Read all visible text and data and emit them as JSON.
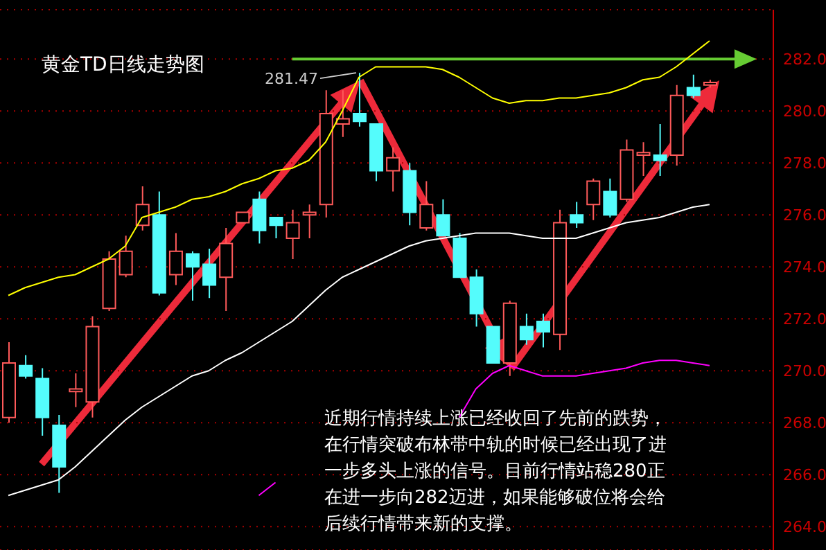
{
  "chart_data": {
    "type": "candlestick",
    "title": "黄金TD日线走势图",
    "categories": [
      null,
      null,
      null,
      null,
      null,
      null,
      null,
      null,
      null,
      null,
      null,
      null,
      null,
      null,
      null,
      null,
      null,
      null,
      null,
      null,
      null,
      null,
      null,
      null,
      null,
      null,
      null,
      null,
      null,
      null,
      null,
      null,
      null,
      null,
      null,
      null,
      null,
      null,
      null,
      null,
      null,
      null,
      null
    ],
    "ohlc": [
      [
        268.2,
        271.1,
        268.0,
        270.3
      ],
      [
        270.2,
        270.6,
        269.7,
        269.8
      ],
      [
        269.7,
        270.1,
        267.5,
        268.2
      ],
      [
        267.9,
        268.3,
        265.3,
        266.3
      ],
      [
        269.2,
        269.9,
        268.6,
        269.3
      ],
      [
        268.8,
        272.1,
        268.2,
        271.7
      ],
      [
        272.4,
        274.6,
        272.3,
        274.3
      ],
      [
        273.7,
        275.2,
        273.6,
        274.6
      ],
      [
        275.6,
        277.1,
        275.4,
        276.4
      ],
      [
        276.0,
        276.9,
        272.9,
        273.0
      ],
      [
        273.7,
        275.3,
        273.3,
        274.6
      ],
      [
        274.5,
        274.6,
        272.7,
        274.0
      ],
      [
        274.1,
        274.7,
        272.8,
        273.3
      ],
      [
        273.6,
        275.5,
        272.3,
        274.9
      ],
      [
        275.7,
        276.1,
        275.7,
        276.1
      ],
      [
        276.6,
        276.9,
        274.9,
        275.4
      ],
      [
        275.9,
        275.9,
        275.1,
        275.6
      ],
      [
        275.1,
        276.2,
        274.3,
        275.7
      ],
      [
        276.0,
        276.4,
        275.1,
        276.1
      ],
      [
        276.4,
        280.8,
        275.9,
        279.9
      ],
      [
        279.5,
        280.8,
        279.0,
        279.7
      ],
      [
        279.9,
        281.47,
        279.4,
        279.6
      ],
      [
        279.5,
        279.5,
        277.3,
        277.7
      ],
      [
        277.7,
        278.6,
        276.9,
        278.2
      ],
      [
        277.7,
        278.0,
        275.6,
        276.1
      ],
      [
        275.5,
        277.3,
        275.4,
        276.4
      ],
      [
        276.0,
        276.6,
        275.2,
        275.2
      ],
      [
        275.1,
        275.3,
        273.6,
        273.6
      ],
      [
        273.6,
        273.9,
        271.7,
        272.2
      ],
      [
        271.7,
        271.7,
        270.3,
        270.3
      ],
      [
        270.3,
        272.7,
        269.8,
        272.6
      ],
      [
        271.7,
        272.2,
        271.0,
        271.2
      ],
      [
        271.9,
        272.2,
        270.9,
        271.5
      ],
      [
        271.4,
        276.2,
        270.8,
        275.7
      ],
      [
        276.0,
        276.5,
        275.5,
        275.7
      ],
      [
        276.4,
        277.4,
        275.8,
        277.3
      ],
      [
        276.9,
        277.4,
        275.9,
        276.0
      ],
      [
        276.6,
        278.9,
        276.5,
        278.5
      ],
      [
        278.3,
        278.8,
        277.5,
        278.4
      ],
      [
        278.3,
        279.5,
        277.5,
        278.1
      ],
      [
        278.3,
        281.0,
        277.9,
        280.6
      ],
      [
        280.9,
        281.4,
        280.5,
        280.6
      ],
      [
        281.0,
        281.2,
        280.9,
        281.1
      ]
    ],
    "colors": [
      "#ff5a5a",
      "#54fcfc",
      "#54fcfc",
      "#54fcfc",
      "#ff5a5a",
      "#ff5a5a",
      "#ff5a5a",
      "#ff5a5a",
      "#ff5a5a",
      "#54fcfc",
      "#ff5a5a",
      "#54fcfc",
      "#54fcfc",
      "#ff5a5a",
      "#ff5a5a",
      "#54fcfc",
      "#54fcfc",
      "#ff5a5a",
      "#ff5a5a",
      "#ff5a5a",
      "#ff5a5a",
      "#54fcfc",
      "#54fcfc",
      "#ff5a5a",
      "#54fcfc",
      "#ff5a5a",
      "#54fcfc",
      "#54fcfc",
      "#54fcfc",
      "#54fcfc",
      "#ff5a5a",
      "#54fcfc",
      "#54fcfc",
      "#ff5a5a",
      "#54fcfc",
      "#ff5a5a",
      "#54fcfc",
      "#ff5a5a",
      "#ff5a5a",
      "#54fcfc",
      "#ff5a5a",
      "#54fcfc",
      "#ff5a5a"
    ],
    "series": [
      {
        "type": "line",
        "color": "#ffff00",
        "values": [
          272.9,
          273.2,
          273.4,
          273.6,
          273.7,
          274.0,
          274.3,
          274.8,
          275.9,
          276.1,
          276.3,
          276.6,
          276.7,
          276.9,
          277.2,
          277.4,
          277.7,
          277.8,
          278.1,
          278.8,
          280.0,
          281.3,
          281.7,
          281.7,
          281.7,
          281.7,
          281.6,
          281.3,
          280.9,
          280.5,
          280.3,
          280.4,
          280.4,
          280.5,
          280.5,
          280.6,
          280.7,
          280.9,
          281.2,
          281.3,
          281.7,
          282.2,
          282.7
        ]
      },
      {
        "type": "line",
        "color": "#ffffff",
        "values": [
          265.2,
          265.4,
          265.6,
          265.8,
          266.3,
          266.9,
          267.5,
          268.1,
          268.6,
          269.0,
          269.4,
          269.8,
          270.0,
          270.4,
          270.7,
          271.1,
          271.5,
          271.9,
          272.5,
          273.1,
          273.6,
          273.9,
          274.2,
          274.5,
          274.8,
          275.0,
          275.1,
          275.2,
          275.3,
          275.3,
          275.3,
          275.2,
          275.1,
          275.1,
          275.1,
          275.3,
          275.5,
          275.7,
          275.8,
          275.9,
          276.1,
          276.3,
          276.4
        ]
      },
      {
        "type": "line",
        "color": "#ff00ff",
        "values": [
          null,
          null,
          null,
          null,
          null,
          null,
          null,
          null,
          null,
          null,
          null,
          null,
          null,
          null,
          null,
          265.2,
          265.7,
          null,
          null,
          null,
          null,
          null,
          null,
          null,
          null,
          null,
          null,
          268.2,
          269.3,
          269.9,
          270.2,
          270.0,
          269.8,
          269.8,
          269.8,
          269.9,
          270.0,
          270.1,
          270.3,
          270.4,
          270.4,
          270.3,
          270.2
        ]
      }
    ],
    "ylim": [
      263.1,
      283.9
    ],
    "yticks": [
      {
        "value": 264,
        "label": "264.0"
      },
      {
        "value": 266,
        "label": "266.0"
      },
      {
        "value": 268,
        "label": "268.0"
      },
      {
        "value": 270,
        "label": "270.0"
      },
      {
        "value": 272,
        "label": "272.0"
      },
      {
        "value": 274,
        "label": "274.0"
      },
      {
        "value": 276,
        "label": "276.0"
      },
      {
        "value": 278,
        "label": "278.0"
      },
      {
        "value": 280,
        "label": "280.0"
      },
      {
        "value": 282,
        "label": "282.0"
      }
    ],
    "grid": "y",
    "tick_labels": "y",
    "ref_lines": [
      {
        "axis": "y",
        "value": 282.0,
        "color": "#66cc33"
      }
    ],
    "annotations": [
      "281.47",
      "近期行情持续上涨已经收回了先前的跌势，在行情突破布林带中轨的时候已经出现了进一步多头上涨的信号。目前行情站稳280正在进一步向282迈进，如果能够破位将会给后续行情带来新的支撑。"
    ]
  }
}
